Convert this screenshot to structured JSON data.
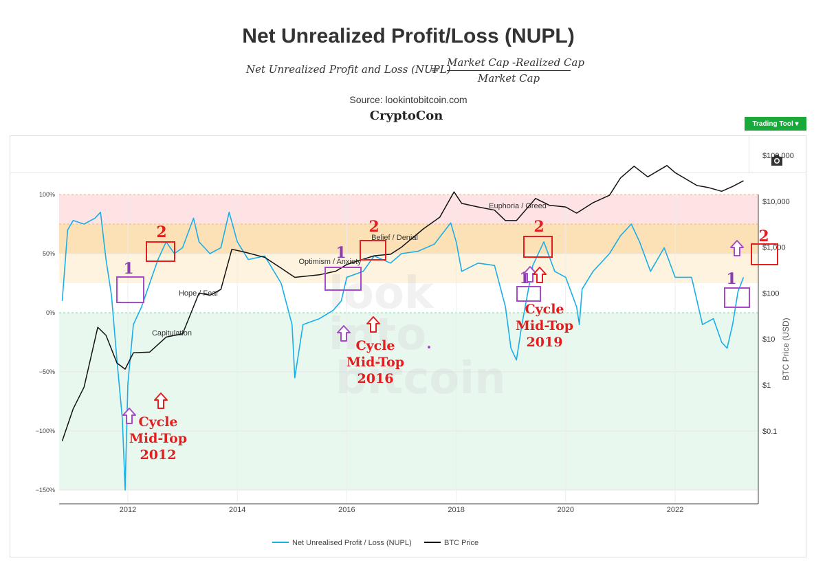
{
  "header": {
    "title": "Net Unrealized Profit/Loss (NUPL)",
    "formula_lhs": "Net Unrealized Profit and Loss (NUPL)",
    "formula_eq": "=",
    "formula_numerator": "Market Cap -Realized Cap",
    "formula_denominator": "Market Cap",
    "source": "Source: lookintobitcoin.com",
    "author": "CryptoCon"
  },
  "toolbar": {
    "trading_tool_label": "Trading Tool ▾",
    "camera_icon": "camera-icon"
  },
  "watermark": [
    "look",
    "into",
    "bitcoin"
  ],
  "chart_data": {
    "type": "line",
    "x_ticks": [
      "2012",
      "2014",
      "2016",
      "2018",
      "2020",
      "2022"
    ],
    "y_left": {
      "ticks": [
        "100%",
        "50%",
        "0%",
        "−50%",
        "−100%",
        "−150%"
      ],
      "values": [
        1.0,
        0.5,
        0,
        -0.5,
        -1.0,
        -1.5
      ],
      "range": [
        -1.5,
        1.0
      ]
    },
    "y_right": {
      "label": "BTC Price (USD)",
      "scale": "log",
      "ticks": [
        "$100,000",
        "$10,000",
        "$1,000",
        "$100",
        "$10",
        "$1",
        "$0.1"
      ],
      "values": [
        100000,
        10000,
        1000,
        100,
        10,
        1,
        0.1
      ]
    },
    "zones": [
      {
        "label": "Euphoria / Greed",
        "from": 0.75,
        "to": 1.0,
        "color": "#fde3e4"
      },
      {
        "label": "Belief / Denial",
        "from": 0.5,
        "to": 0.75,
        "color": "#fde1b6"
      },
      {
        "label": "Optimism / Anxiety",
        "from": 0.25,
        "to": 0.5,
        "color": "#fdf3df"
      },
      {
        "label": "Hope / Fear",
        "from": 0.0,
        "to": 0.25,
        "color": "#ffffff"
      },
      {
        "label": "Capitulation",
        "from": -1.5,
        "to": 0.0,
        "color": "#e9f8ef"
      }
    ],
    "series": [
      {
        "name": "Net Unrealised Profit / Loss (NUPL)",
        "color": "#19aee8",
        "axis": "left",
        "points": [
          [
            2010.8,
            0.1
          ],
          [
            2010.9,
            0.7
          ],
          [
            2011.0,
            0.78
          ],
          [
            2011.2,
            0.75
          ],
          [
            2011.4,
            0.8
          ],
          [
            2011.5,
            0.85
          ],
          [
            2011.6,
            0.45
          ],
          [
            2011.7,
            0.15
          ],
          [
            2011.8,
            -0.4
          ],
          [
            2011.9,
            -0.9
          ],
          [
            2011.95,
            -1.5
          ],
          [
            2012.0,
            -0.6
          ],
          [
            2012.1,
            -0.1
          ],
          [
            2012.25,
            0.05
          ],
          [
            2012.4,
            0.25
          ],
          [
            2012.55,
            0.45
          ],
          [
            2012.7,
            0.6
          ],
          [
            2012.85,
            0.5
          ],
          [
            2013.0,
            0.55
          ],
          [
            2013.2,
            0.8
          ],
          [
            2013.3,
            0.6
          ],
          [
            2013.5,
            0.5
          ],
          [
            2013.7,
            0.55
          ],
          [
            2013.85,
            0.85
          ],
          [
            2014.0,
            0.6
          ],
          [
            2014.2,
            0.45
          ],
          [
            2014.5,
            0.48
          ],
          [
            2014.8,
            0.25
          ],
          [
            2015.0,
            -0.1
          ],
          [
            2015.05,
            -0.55
          ],
          [
            2015.2,
            -0.1
          ],
          [
            2015.5,
            -0.05
          ],
          [
            2015.75,
            0.02
          ],
          [
            2015.9,
            0.1
          ],
          [
            2016.0,
            0.3
          ],
          [
            2016.3,
            0.35
          ],
          [
            2016.5,
            0.48
          ],
          [
            2016.8,
            0.42
          ],
          [
            2017.0,
            0.5
          ],
          [
            2017.3,
            0.52
          ],
          [
            2017.6,
            0.58
          ],
          [
            2017.9,
            0.76
          ],
          [
            2018.0,
            0.6
          ],
          [
            2018.1,
            0.35
          ],
          [
            2018.4,
            0.42
          ],
          [
            2018.7,
            0.4
          ],
          [
            2018.9,
            0.05
          ],
          [
            2019.0,
            -0.3
          ],
          [
            2019.1,
            -0.4
          ],
          [
            2019.2,
            -0.1
          ],
          [
            2019.4,
            0.4
          ],
          [
            2019.6,
            0.6
          ],
          [
            2019.8,
            0.35
          ],
          [
            2020.0,
            0.3
          ],
          [
            2020.2,
            0.05
          ],
          [
            2020.25,
            -0.1
          ],
          [
            2020.3,
            0.2
          ],
          [
            2020.5,
            0.35
          ],
          [
            2020.8,
            0.5
          ],
          [
            2021.0,
            0.65
          ],
          [
            2021.2,
            0.75
          ],
          [
            2021.35,
            0.6
          ],
          [
            2021.55,
            0.35
          ],
          [
            2021.8,
            0.55
          ],
          [
            2022.0,
            0.3
          ],
          [
            2022.3,
            0.3
          ],
          [
            2022.5,
            -0.1
          ],
          [
            2022.7,
            -0.05
          ],
          [
            2022.85,
            -0.25
          ],
          [
            2022.95,
            -0.3
          ],
          [
            2023.05,
            -0.1
          ],
          [
            2023.15,
            0.18
          ],
          [
            2023.25,
            0.3
          ]
        ]
      },
      {
        "name": "BTC Price",
        "color": "#111111",
        "axis": "right",
        "points": [
          [
            2010.8,
            0.06
          ],
          [
            2011.0,
            0.3
          ],
          [
            2011.2,
            0.9
          ],
          [
            2011.45,
            18
          ],
          [
            2011.6,
            12
          ],
          [
            2011.8,
            3
          ],
          [
            2011.95,
            2.2
          ],
          [
            2012.1,
            5
          ],
          [
            2012.4,
            5.2
          ],
          [
            2012.7,
            11
          ],
          [
            2013.0,
            13
          ],
          [
            2013.3,
            100
          ],
          [
            2013.5,
            90
          ],
          [
            2013.7,
            120
          ],
          [
            2013.9,
            900
          ],
          [
            2014.1,
            800
          ],
          [
            2014.5,
            600
          ],
          [
            2014.8,
            350
          ],
          [
            2015.05,
            220
          ],
          [
            2015.5,
            250
          ],
          [
            2015.8,
            300
          ],
          [
            2016.0,
            420
          ],
          [
            2016.5,
            650
          ],
          [
            2016.8,
            700
          ],
          [
            2017.0,
            1000
          ],
          [
            2017.4,
            2500
          ],
          [
            2017.7,
            4500
          ],
          [
            2017.96,
            16000
          ],
          [
            2018.1,
            9000
          ],
          [
            2018.4,
            7500
          ],
          [
            2018.7,
            6400
          ],
          [
            2018.9,
            3800
          ],
          [
            2019.1,
            3800
          ],
          [
            2019.45,
            11500
          ],
          [
            2019.7,
            8200
          ],
          [
            2020.0,
            7500
          ],
          [
            2020.2,
            5500
          ],
          [
            2020.5,
            9300
          ],
          [
            2020.8,
            13500
          ],
          [
            2021.0,
            32000
          ],
          [
            2021.25,
            58000
          ],
          [
            2021.5,
            34000
          ],
          [
            2021.85,
            60000
          ],
          [
            2022.0,
            42000
          ],
          [
            2022.4,
            22000
          ],
          [
            2022.6,
            20000
          ],
          [
            2022.85,
            16500
          ],
          [
            2023.05,
            21000
          ],
          [
            2023.25,
            28000
          ]
        ]
      }
    ],
    "legend": {
      "position": "bottom-center"
    },
    "grid": true
  },
  "annotations": {
    "mid_top_labels": [
      "Cycle",
      "Mid-Top",
      "2012",
      "Cycle",
      "Mid-Top",
      "2016",
      "Cycle",
      "Mid-Top",
      "2019"
    ],
    "markers": [
      "1",
      "2",
      "1",
      "2",
      "1",
      "2",
      "1",
      "2"
    ]
  }
}
